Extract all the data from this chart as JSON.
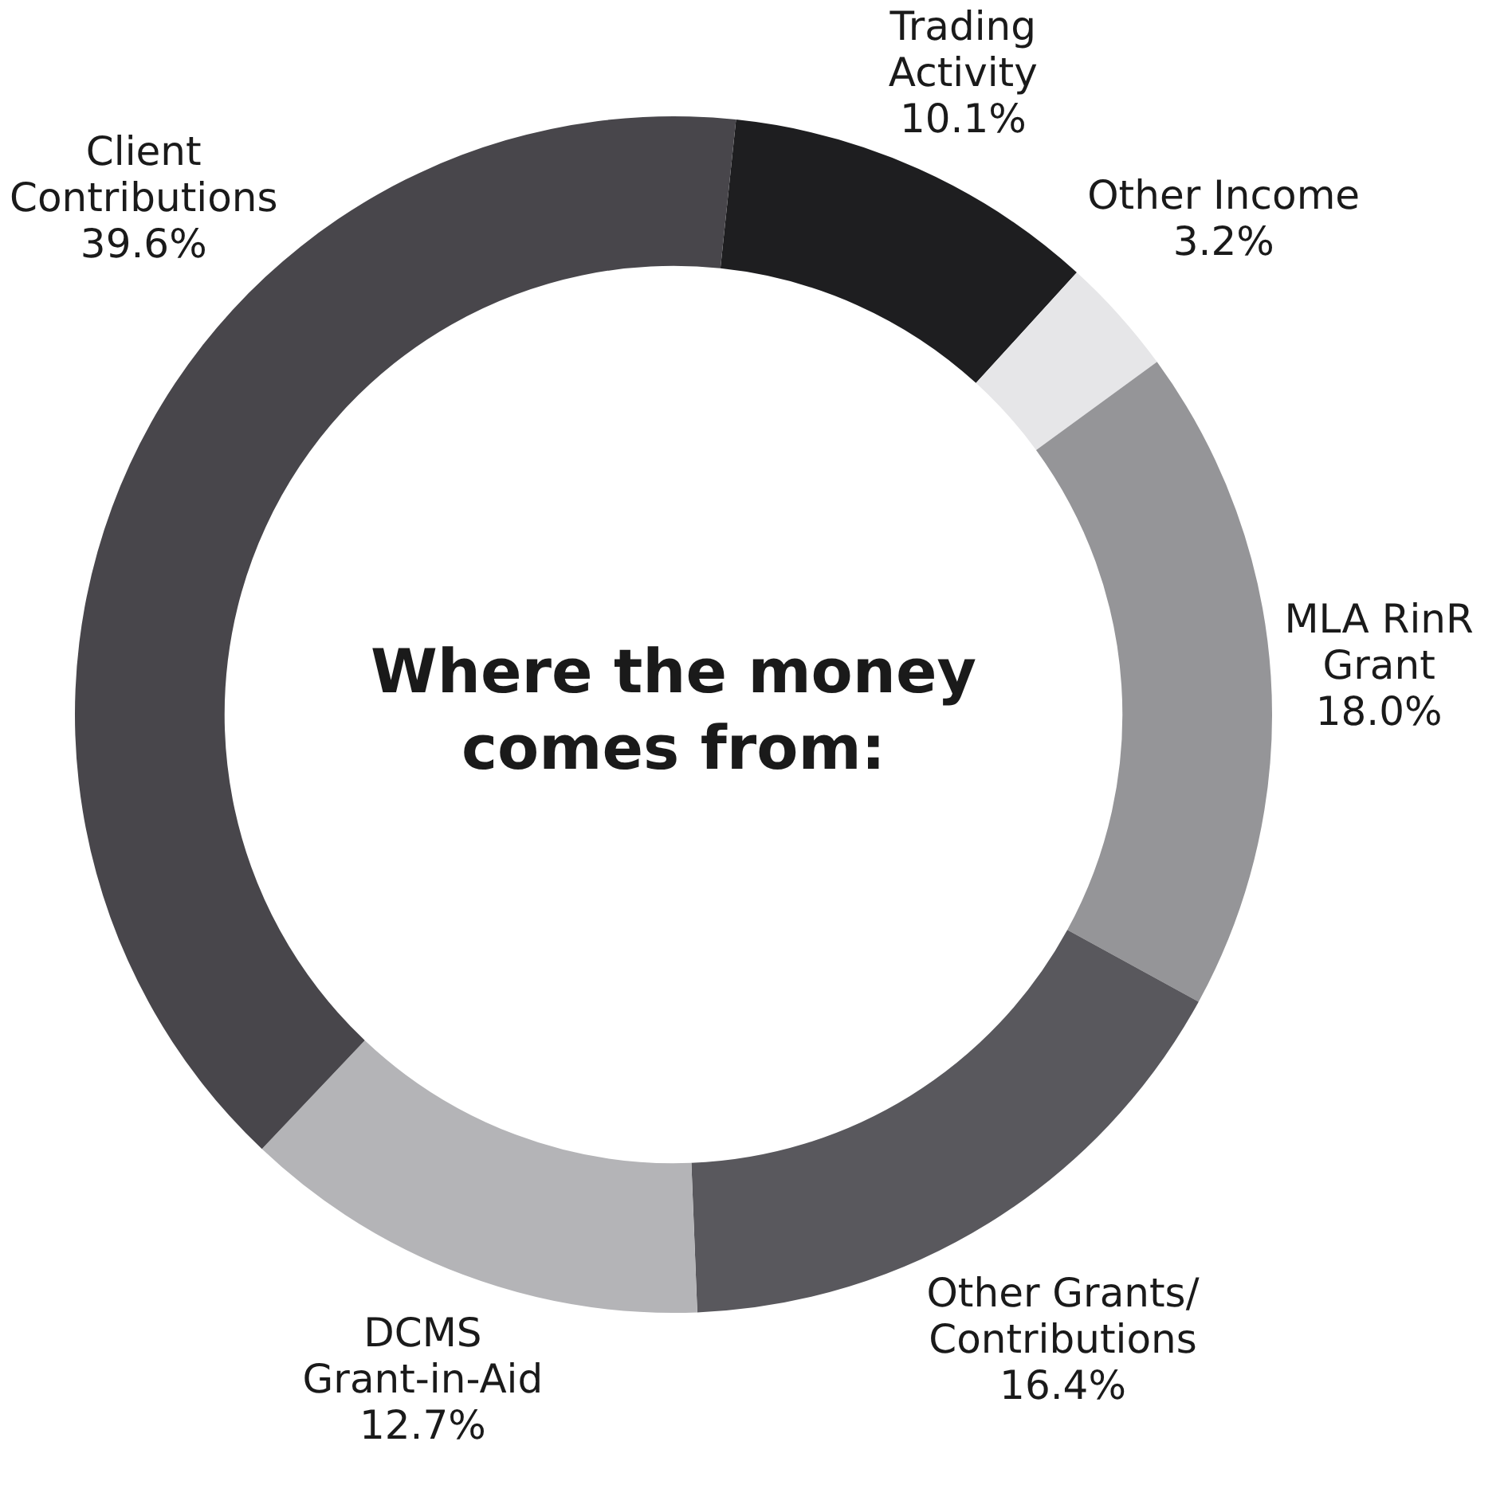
{
  "chart_data": {
    "type": "donut",
    "title": "Where the money comes from:",
    "categories": [
      "Trading Activity",
      "Other Income",
      "MLA RinR Grant",
      "Other Grants/Contributions",
      "DCMS Grant-in-Aid",
      "Client Contributions"
    ],
    "values": [
      10.1,
      3.2,
      18.0,
      16.4,
      12.7,
      39.6
    ],
    "value_labels": [
      "10.1%",
      "3.2%",
      "18.0%",
      "16.4%",
      "12.7%",
      "39.6%"
    ],
    "colors": [
      "#1e1e20",
      "#e6e6e8",
      "#959598",
      "#59585d",
      "#b4b4b7",
      "#48464b"
    ],
    "legend": false
  }
}
